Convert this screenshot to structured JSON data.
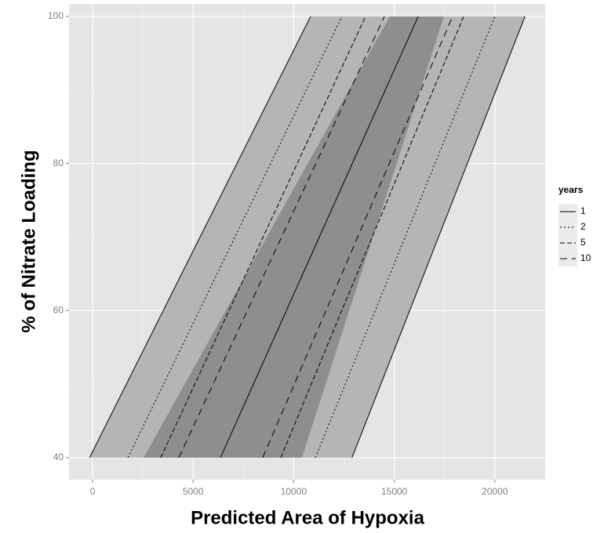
{
  "chart_data": {
    "type": "line",
    "x_label": "Predicted Area of Hypoxia",
    "y_label": "% of Nitrate Loading",
    "xlim": [
      -1170,
      22500
    ],
    "ylim": [
      37,
      101.7
    ],
    "xticks": [
      0,
      5000,
      10000,
      15000,
      20000
    ],
    "yticks": [
      40,
      60,
      80,
      100
    ],
    "grid": true,
    "y": [
      40,
      100
    ],
    "bands": [
      {
        "lower": [
          -150,
          10840
        ],
        "upper": [
          12900,
          21500
        ],
        "color": "#b5b5b5",
        "outline": true
      },
      {
        "lower": [
          2540,
          14780
        ],
        "upper": [
          10410,
          17470
        ],
        "color": "#8e8e8e",
        "outline": false
      }
    ],
    "legend_title": "years",
    "series": [
      {
        "name": "1",
        "dash": "solid",
        "color": "#000000",
        "lines": [
          [
            6360,
            16190
          ]
        ]
      },
      {
        "name": "2",
        "dash": "dotted",
        "color": "#000000",
        "lines": [
          [
            1760,
            12400
          ],
          [
            11080,
            20000
          ]
        ]
      },
      {
        "name": "5",
        "dash": "dashed",
        "color": "#000000",
        "lines": [
          [
            3390,
            13570
          ],
          [
            9360,
            18450
          ]
        ]
      },
      {
        "name": "10",
        "dash": "longdash",
        "color": "#000000",
        "lines": [
          [
            4290,
            14510
          ],
          [
            8460,
            17900
          ]
        ]
      }
    ]
  }
}
